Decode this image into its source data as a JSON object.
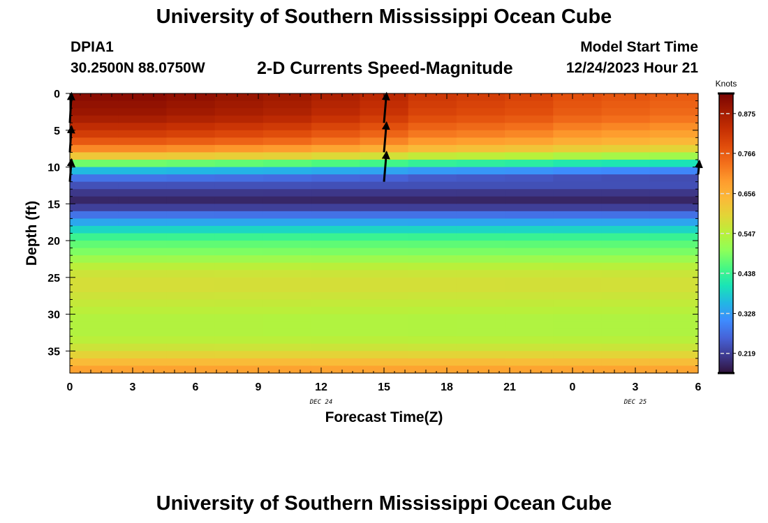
{
  "header": {
    "title": "University of Southern Mississippi Ocean Cube",
    "station_id": "DPIA1",
    "coordinates": "30.2500N  88.0750W",
    "subtitle": "2-D Currents Speed-Magnitude",
    "model_start_label": "Model Start Time",
    "model_start_value": "12/24/2023 Hour 21"
  },
  "footer": {
    "title": "University of Southern Mississippi Ocean Cube"
  },
  "chart_data": {
    "type": "heatmap",
    "title": "2-D Currents Speed-Magnitude",
    "xlabel": "Forecast Time(Z)",
    "ylabel": "Depth (ft)",
    "x_tick_labels": [
      "0",
      "3",
      "6",
      "9",
      "12",
      "15",
      "18",
      "21",
      "0",
      "3",
      "6"
    ],
    "x_tick_hours": [
      0,
      3,
      6,
      9,
      12,
      15,
      18,
      21,
      24,
      27,
      30
    ],
    "xlim": [
      0,
      30
    ],
    "date_labels": [
      {
        "text": "DEC 24",
        "hour": 12
      },
      {
        "text": "DEC 25",
        "hour": 27
      }
    ],
    "y_tick_labels": [
      "0",
      "5",
      "10",
      "15",
      "20",
      "25",
      "30",
      "35"
    ],
    "y_tick_values": [
      0,
      5,
      10,
      15,
      20,
      25,
      30,
      35
    ],
    "ylim": [
      0,
      38
    ],
    "colorbar": {
      "label": "Knots",
      "ticks": [
        "0.875",
        "0.766",
        "0.656",
        "0.547",
        "0.438",
        "0.328",
        "0.219"
      ],
      "tick_values": [
        0.875,
        0.766,
        0.656,
        0.547,
        0.438,
        0.328,
        0.219
      ],
      "min": 0.165,
      "max": 0.93,
      "colors": [
        "#30123b",
        "#3e3a8f",
        "#4662d7",
        "#3e8bfe",
        "#22b6e4",
        "#1ae4b6",
        "#46f884",
        "#8cff5a",
        "#b9f03a",
        "#e2d537",
        "#fbb938",
        "#fe9b2d",
        "#f36f1b",
        "#e04c0b",
        "#c42e03",
        "#a01a01",
        "#7a0403"
      ]
    },
    "time_columns": [
      0,
      2.5,
      5,
      7.5,
      10,
      12.5,
      15,
      17.5,
      20,
      22.5,
      25,
      27.5,
      30
    ],
    "depth_profile": {
      "depths_ft": [
        0,
        1,
        2,
        3,
        4,
        5,
        6,
        7,
        8,
        9,
        10,
        11,
        12,
        13,
        14,
        15,
        16,
        17,
        18,
        19,
        20,
        21,
        22,
        23,
        24,
        25,
        26,
        27,
        28,
        29,
        30,
        31,
        32,
        33,
        34,
        35,
        36,
        37,
        38
      ],
      "speed_knots_at_hour_0": [
        0.91,
        0.9,
        0.89,
        0.87,
        0.84,
        0.81,
        0.77,
        0.71,
        0.62,
        0.48,
        0.36,
        0.28,
        0.24,
        0.21,
        0.19,
        0.22,
        0.28,
        0.34,
        0.39,
        0.44,
        0.47,
        0.49,
        0.52,
        0.55,
        0.57,
        0.58,
        0.58,
        0.57,
        0.56,
        0.55,
        0.54,
        0.54,
        0.54,
        0.55,
        0.57,
        0.6,
        0.64,
        0.68,
        0.7
      ]
    },
    "time_factor": [
      1.0,
      1.0,
      0.99,
      0.98,
      0.97,
      0.95,
      0.93,
      0.9,
      0.89,
      0.88,
      0.86,
      0.85,
      0.84
    ],
    "vectors": [
      {
        "hour": 0,
        "depth": 4,
        "length": 4,
        "dx": 0.08
      },
      {
        "hour": 0,
        "depth": 8,
        "length": 3.5,
        "dx": 0.08
      },
      {
        "hour": 0,
        "depth": 12,
        "length": 3,
        "dx": 0.08
      },
      {
        "hour": 15,
        "depth": 4,
        "length": 4,
        "dx": 0.12
      },
      {
        "hour": 15,
        "depth": 8,
        "length": 4,
        "dx": 0.12
      },
      {
        "hour": 15,
        "depth": 12,
        "length": 4,
        "dx": 0.12
      },
      {
        "hour": 30,
        "depth": 11,
        "length": 1.8,
        "dx": 0.06
      }
    ]
  }
}
